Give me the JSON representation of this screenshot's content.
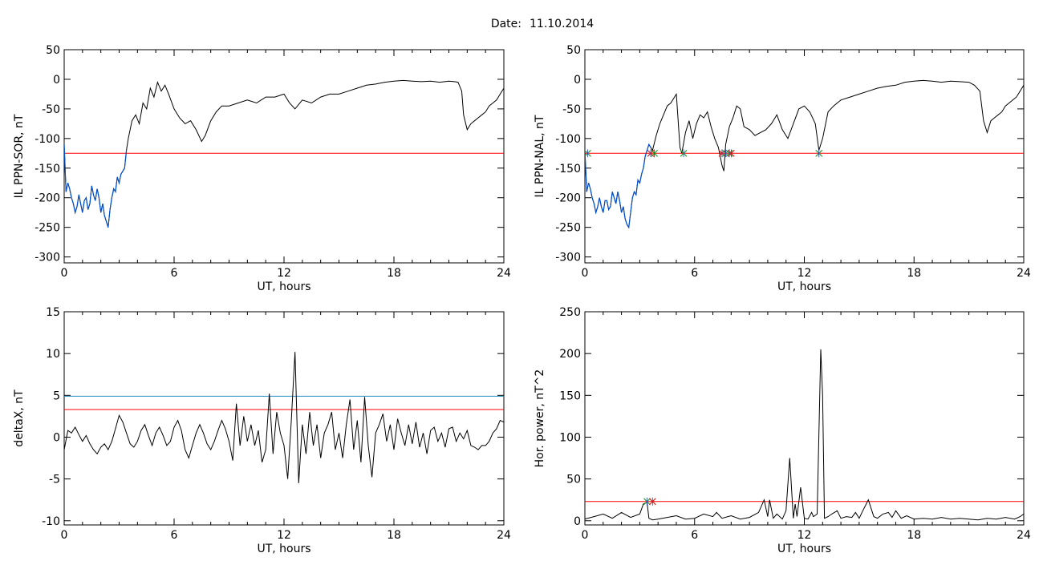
{
  "header": {
    "date_label": "Date:",
    "date_value": "11.10.2014"
  },
  "colors": {
    "trace": "#000000",
    "threshold": "#ff0000",
    "threshold2": "#1f8fbf",
    "substorm_trace": "#0050d0",
    "marker_green": "#2ca02c",
    "marker_red": "#d62728",
    "marker_blue": "#1f3fbf"
  },
  "chart_data": [
    {
      "type": "line",
      "xlabel": "UT, hours",
      "ylabel": "IL PPN-SOR, nT",
      "xlim": [
        0,
        24
      ],
      "ylim": [
        -310,
        50
      ],
      "xticks": [
        0,
        6,
        12,
        18,
        24
      ],
      "yticks": [
        50,
        0,
        -50,
        -100,
        -150,
        -200,
        -250,
        -300
      ],
      "grid": false,
      "threshold": -125,
      "highlight_range": [
        0,
        3.4
      ],
      "series": [
        {
          "x": [
            0,
            0.1,
            0.2,
            0.3,
            0.4,
            0.5,
            0.6,
            0.7,
            0.8,
            0.9,
            1.0,
            1.1,
            1.2,
            1.3,
            1.4,
            1.5,
            1.6,
            1.7,
            1.8,
            1.9,
            2.0,
            2.1,
            2.2,
            2.3,
            2.4,
            2.5,
            2.6,
            2.7,
            2.8,
            2.9,
            3.0,
            3.1,
            3.2,
            3.3,
            3.4,
            3.5,
            3.7,
            3.9,
            4.1,
            4.3,
            4.5,
            4.7,
            4.9,
            5.1,
            5.3,
            5.5,
            5.7,
            6.0,
            6.3,
            6.6,
            6.9,
            7.2,
            7.5,
            7.7,
            8.0,
            8.3,
            8.6,
            9.0,
            9.5,
            10.0,
            10.5,
            11.0,
            11.5,
            12.0,
            12.3,
            12.6,
            13.0,
            13.5,
            14.0,
            14.5,
            15.0,
            15.5,
            16.0,
            16.5,
            17.0,
            17.5,
            18.0,
            18.5,
            19.0,
            19.5,
            20.0,
            20.5,
            21.0,
            21.3,
            21.5,
            21.7,
            21.8,
            22.0,
            22.2,
            22.4,
            22.6,
            22.8,
            23.0,
            23.2,
            23.4,
            23.6,
            23.8,
            24.0
          ],
          "y": [
            -110,
            -190,
            -175,
            -185,
            -200,
            -210,
            -225,
            -215,
            -195,
            -210,
            -225,
            -205,
            -200,
            -220,
            -210,
            -180,
            -195,
            -205,
            -185,
            -200,
            -225,
            -210,
            -230,
            -240,
            -250,
            -220,
            -200,
            -185,
            -190,
            -165,
            -175,
            -160,
            -155,
            -150,
            -120,
            -100,
            -70,
            -60,
            -75,
            -40,
            -50,
            -15,
            -30,
            -5,
            -20,
            -10,
            -25,
            -50,
            -65,
            -75,
            -70,
            -85,
            -105,
            -95,
            -70,
            -55,
            -45,
            -45,
            -40,
            -35,
            -40,
            -30,
            -30,
            -25,
            -40,
            -50,
            -35,
            -40,
            -30,
            -25,
            -25,
            -20,
            -15,
            -10,
            -8,
            -5,
            -3,
            -2,
            -3,
            -4,
            -3,
            -5,
            -3,
            -4,
            -5,
            -20,
            -60,
            -85,
            -75,
            -70,
            -65,
            -60,
            -55,
            -45,
            -40,
            -35,
            -25,
            -15
          ]
        }
      ]
    },
    {
      "type": "line",
      "xlabel": "UT, hours",
      "ylabel": "IL PPN-NAL, nT",
      "xlim": [
        0,
        24
      ],
      "ylim": [
        -310,
        50
      ],
      "xticks": [
        0,
        6,
        12,
        18,
        24
      ],
      "yticks": [
        50,
        0,
        -50,
        -100,
        -150,
        -200,
        -250,
        -300
      ],
      "grid": false,
      "threshold": -125,
      "highlight_range": [
        0,
        3.6
      ],
      "markers": [
        0.15,
        3.6,
        3.8,
        5.4,
        7.5,
        7.7,
        7.9,
        8.0,
        12.8
      ],
      "series": [
        {
          "x": [
            0,
            0.1,
            0.2,
            0.3,
            0.4,
            0.5,
            0.6,
            0.7,
            0.8,
            0.9,
            1.0,
            1.1,
            1.2,
            1.3,
            1.4,
            1.5,
            1.6,
            1.7,
            1.8,
            1.9,
            2.0,
            2.1,
            2.2,
            2.3,
            2.4,
            2.5,
            2.6,
            2.7,
            2.8,
            2.9,
            3.0,
            3.1,
            3.2,
            3.3,
            3.4,
            3.5,
            3.6,
            3.7,
            3.9,
            4.1,
            4.3,
            4.5,
            4.7,
            4.9,
            5.0,
            5.2,
            5.3,
            5.5,
            5.7,
            5.9,
            6.1,
            6.3,
            6.5,
            6.7,
            6.9,
            7.1,
            7.3,
            7.5,
            7.6,
            7.7,
            7.9,
            8.1,
            8.3,
            8.5,
            8.7,
            9.0,
            9.3,
            9.6,
            9.9,
            10.2,
            10.5,
            10.8,
            11.1,
            11.4,
            11.7,
            12.0,
            12.3,
            12.6,
            12.8,
            13.0,
            13.3,
            13.6,
            14.0,
            14.5,
            15.0,
            15.5,
            16.0,
            16.5,
            17.0,
            17.5,
            18.0,
            18.5,
            19.0,
            19.5,
            20.0,
            20.5,
            21.0,
            21.3,
            21.6,
            21.8,
            22.0,
            22.2,
            22.4,
            22.6,
            22.8,
            23.0,
            23.2,
            23.4,
            23.6,
            23.8,
            24.0
          ],
          "y": [
            -120,
            -190,
            -175,
            -185,
            -200,
            -210,
            -225,
            -215,
            -200,
            -215,
            -225,
            -205,
            -205,
            -220,
            -215,
            -190,
            -200,
            -210,
            -190,
            -205,
            -225,
            -215,
            -235,
            -245,
            -250,
            -225,
            -200,
            -190,
            -195,
            -170,
            -175,
            -160,
            -150,
            -130,
            -120,
            -110,
            -115,
            -120,
            -95,
            -75,
            -60,
            -45,
            -40,
            -30,
            -25,
            -115,
            -125,
            -90,
            -70,
            -100,
            -75,
            -60,
            -65,
            -55,
            -80,
            -100,
            -115,
            -145,
            -155,
            -110,
            -80,
            -65,
            -45,
            -50,
            -80,
            -85,
            -95,
            -90,
            -85,
            -75,
            -60,
            -85,
            -100,
            -75,
            -50,
            -45,
            -55,
            -75,
            -120,
            -100,
            -55,
            -45,
            -35,
            -30,
            -25,
            -20,
            -15,
            -12,
            -10,
            -5,
            -3,
            -2,
            -3,
            -5,
            -3,
            -4,
            -5,
            -10,
            -20,
            -70,
            -90,
            -70,
            -65,
            -60,
            -55,
            -45,
            -40,
            -35,
            -30,
            -20,
            -10
          ]
        }
      ]
    },
    {
      "type": "line",
      "xlabel": "UT, hours",
      "ylabel": "deltaX, nT",
      "xlim": [
        0,
        24
      ],
      "ylim": [
        -10.5,
        15
      ],
      "xticks": [
        0,
        6,
        12,
        18,
        24
      ],
      "yticks": [
        15,
        10,
        5,
        0,
        -5,
        -10
      ],
      "grid": false,
      "threshold": 3.3,
      "threshold2": 4.9,
      "series": [
        {
          "x": [
            0,
            0.2,
            0.4,
            0.6,
            0.8,
            1.0,
            1.2,
            1.4,
            1.6,
            1.8,
            2.0,
            2.2,
            2.4,
            2.6,
            2.8,
            3.0,
            3.2,
            3.4,
            3.6,
            3.8,
            4.0,
            4.2,
            4.4,
            4.6,
            4.8,
            5.0,
            5.2,
            5.4,
            5.6,
            5.8,
            6.0,
            6.2,
            6.4,
            6.6,
            6.8,
            7.0,
            7.2,
            7.4,
            7.6,
            7.8,
            8.0,
            8.2,
            8.4,
            8.6,
            8.8,
            9.0,
            9.2,
            9.4,
            9.6,
            9.8,
            10.0,
            10.2,
            10.4,
            10.6,
            10.8,
            11.0,
            11.2,
            11.4,
            11.6,
            11.8,
            12.0,
            12.2,
            12.4,
            12.6,
            12.8,
            13.0,
            13.2,
            13.4,
            13.6,
            13.8,
            14.0,
            14.2,
            14.4,
            14.6,
            14.8,
            15.0,
            15.2,
            15.4,
            15.6,
            15.8,
            16.0,
            16.2,
            16.4,
            16.6,
            16.8,
            17.0,
            17.2,
            17.4,
            17.6,
            17.8,
            18.0,
            18.2,
            18.4,
            18.6,
            18.8,
            19.0,
            19.2,
            19.4,
            19.6,
            19.8,
            20.0,
            20.2,
            20.4,
            20.6,
            20.8,
            21.0,
            21.2,
            21.4,
            21.6,
            21.8,
            22.0,
            22.2,
            22.4,
            22.6,
            22.8,
            23.0,
            23.2,
            23.4,
            23.6,
            23.8,
            24.0
          ],
          "y": [
            -1.5,
            0.8,
            0.5,
            1.2,
            0.3,
            -0.5,
            0.2,
            -0.8,
            -1.5,
            -2.0,
            -1.2,
            -0.8,
            -1.5,
            -0.5,
            1.0,
            2.6,
            1.8,
            0.5,
            -0.8,
            -1.2,
            -0.5,
            0.8,
            1.5,
            0.2,
            -1.0,
            0.5,
            1.2,
            0.2,
            -1.0,
            -0.5,
            1.2,
            2.0,
            0.8,
            -1.5,
            -2.5,
            -1.0,
            0.5,
            1.5,
            0.5,
            -0.8,
            -1.5,
            -0.5,
            0.8,
            2.0,
            1.0,
            -0.5,
            -2.8,
            4.0,
            -1.0,
            2.5,
            -0.5,
            1.5,
            -1.0,
            0.8,
            -3.0,
            -1.5,
            5.2,
            -2.0,
            3.0,
            0.5,
            -1.0,
            -5.0,
            2.0,
            10.2,
            -5.5,
            1.5,
            -2.0,
            3.0,
            -1.0,
            1.5,
            -2.5,
            0.5,
            1.5,
            3.0,
            -1.5,
            0.5,
            -2.5,
            1.5,
            4.5,
            -1.5,
            2.0,
            -3.0,
            4.8,
            -1.0,
            -4.8,
            0.5,
            1.5,
            2.8,
            -0.5,
            1.5,
            -1.5,
            2.2,
            0.5,
            -1.0,
            1.5,
            -0.8,
            1.8,
            -1.2,
            0.5,
            -2.0,
            0.8,
            1.2,
            -0.5,
            0.5,
            -1.2,
            1.0,
            1.2,
            -0.5,
            0.5,
            -0.2,
            0.8,
            -1.0,
            -1.2,
            -1.5,
            -1.0,
            -1.0,
            -0.5,
            0.5,
            1.0,
            2.0,
            1.8
          ]
        }
      ]
    },
    {
      "type": "line",
      "xlabel": "UT, hours",
      "ylabel": "Hor. power, nT^2",
      "xlim": [
        0,
        24
      ],
      "ylim": [
        -5,
        250
      ],
      "xticks": [
        0,
        6,
        12,
        18,
        24
      ],
      "yticks": [
        250,
        200,
        150,
        100,
        50,
        0
      ],
      "grid": false,
      "threshold": 23,
      "markers": [
        3.4,
        3.7
      ],
      "series": [
        {
          "x": [
            0,
            0.5,
            1.0,
            1.5,
            2.0,
            2.5,
            3.0,
            3.2,
            3.4,
            3.5,
            3.7,
            4.0,
            4.5,
            5.0,
            5.5,
            6.0,
            6.5,
            7.0,
            7.2,
            7.5,
            8.0,
            8.5,
            9.0,
            9.5,
            9.8,
            10.0,
            10.1,
            10.3,
            10.5,
            10.8,
            11.0,
            11.2,
            11.4,
            11.5,
            11.6,
            11.8,
            12.0,
            12.2,
            12.4,
            12.5,
            12.7,
            12.9,
            13.0,
            13.1,
            13.3,
            13.5,
            13.8,
            14.0,
            14.3,
            14.6,
            14.8,
            15.0,
            15.2,
            15.5,
            15.8,
            16.0,
            16.3,
            16.6,
            16.8,
            17.0,
            17.3,
            17.6,
            18.0,
            18.5,
            19.0,
            19.5,
            20.0,
            20.5,
            21.0,
            21.5,
            22.0,
            22.5,
            23.0,
            23.5,
            23.8,
            24.0
          ],
          "y": [
            2,
            5,
            8,
            3,
            10,
            4,
            8,
            20,
            22,
            3,
            1,
            2,
            4,
            6,
            2,
            3,
            8,
            5,
            10,
            3,
            6,
            2,
            4,
            10,
            25,
            5,
            25,
            3,
            8,
            2,
            12,
            75,
            3,
            20,
            5,
            40,
            3,
            2,
            10,
            5,
            8,
            205,
            150,
            3,
            5,
            8,
            12,
            3,
            5,
            4,
            10,
            3,
            12,
            25,
            5,
            3,
            8,
            10,
            4,
            12,
            3,
            6,
            2,
            3,
            2,
            4,
            2,
            3,
            2,
            1,
            3,
            2,
            4,
            2,
            5,
            8
          ]
        }
      ]
    }
  ]
}
